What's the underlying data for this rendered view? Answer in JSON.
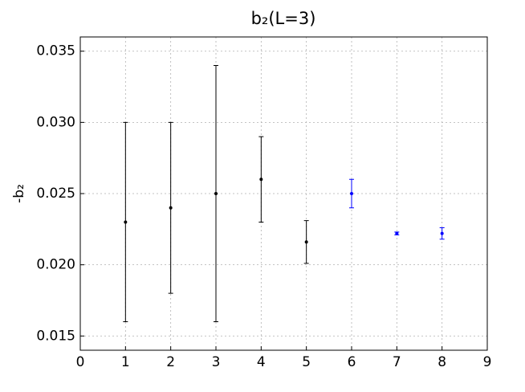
{
  "chart_data": {
    "type": "errorbar",
    "title": "b₂(L=3)",
    "ylabel": "-b₂",
    "series": [
      {
        "color": "#000000",
        "x": [
          1,
          2,
          3,
          4,
          5
        ],
        "values": [
          0.023,
          0.024,
          0.025,
          0.026,
          0.0216
        ],
        "errors": [
          0.007,
          0.006,
          0.009,
          0.003,
          0.0015
        ]
      },
      {
        "color": "#0000ff",
        "x": [
          6,
          7,
          8
        ],
        "values": [
          0.025,
          0.0222,
          0.0222
        ],
        "errors": [
          0.001,
          0.0001,
          0.0004
        ]
      }
    ],
    "xlim": [
      0,
      9
    ],
    "xticks": [
      0,
      1,
      2,
      3,
      4,
      5,
      6,
      7,
      8,
      9
    ],
    "ylim": [
      0.014,
      0.036
    ],
    "yticks": [
      0.015,
      {
        "value": 0.02,
        "label": "0.020"
      },
      0.025,
      {
        "value": 0.03,
        "label": "0.030"
      },
      0.035
    ],
    "grid": true
  }
}
